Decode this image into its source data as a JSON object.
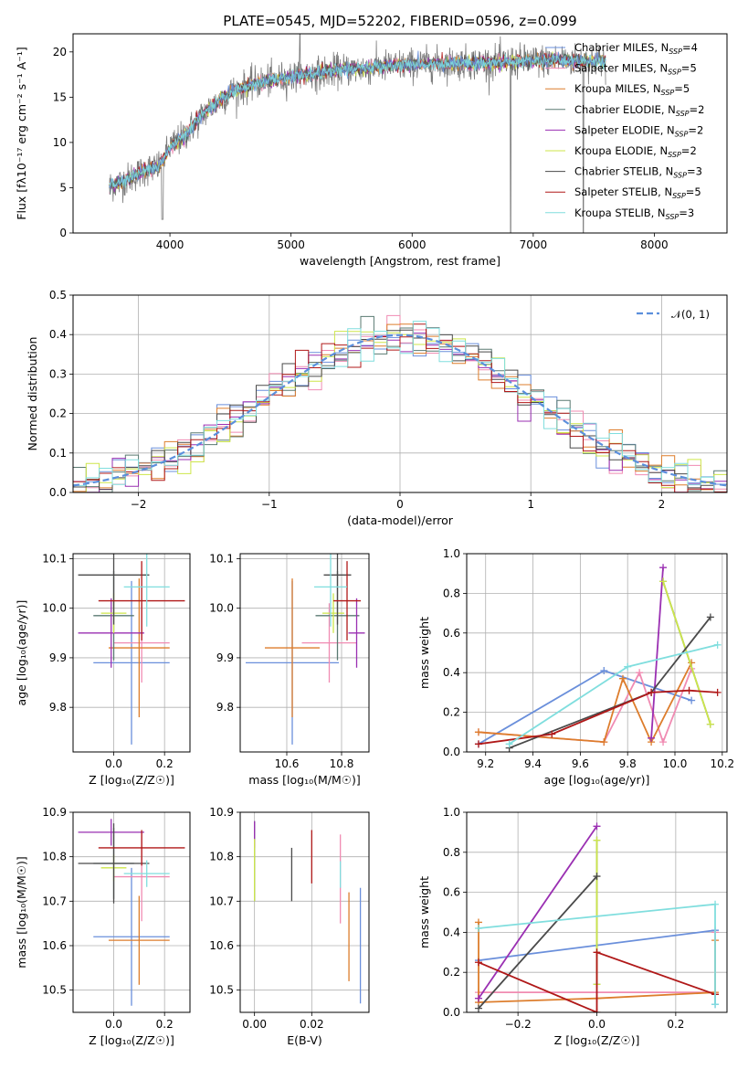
{
  "colors": {
    "Chabrier MILES": "#6a8fdb",
    "Salpeter MILES": "#f08bb2",
    "Kroupa MILES": "#dd7d2c",
    "Chabrier ELODIE": "#5a7a72",
    "Salpeter ELODIE": "#9a2fb2",
    "Kroupa ELODIE": "#cde64a",
    "Chabrier STELIB": "#4a4a4a",
    "Salpeter STELIB": "#b01818",
    "Kroupa STELIB": "#80dede",
    "normal": "#5b8fdc"
  },
  "chart_data": [
    {
      "id": "spectrum",
      "type": "line",
      "title": "PLATE=0545, MJD=52202, FIBERID=0596, z=0.099",
      "xlabel": "wavelength [Angstrom, rest frame]",
      "ylabel": "Flux [fλ10⁻¹⁷ erg cm⁻² s⁻¹ A⁻¹]",
      "xlim": [
        3200,
        8600
      ],
      "ylim": [
        0,
        22
      ],
      "xticks": [
        4000,
        5000,
        6000,
        7000,
        8000
      ],
      "yticks": [
        0,
        5,
        10,
        15,
        20
      ],
      "grid": false,
      "legend_position": "top-right",
      "continuum": {
        "x": [
          3500,
          3600,
          3700,
          3800,
          3900,
          3950,
          4000,
          4100,
          4200,
          4300,
          4400,
          4500,
          4600,
          4700,
          4800,
          4900,
          5000,
          5200,
          5400,
          5600,
          5800,
          6000,
          6200,
          6400,
          6600,
          6800,
          7000,
          7200,
          7400,
          7600
        ],
        "y": [
          5.2,
          5.6,
          6.3,
          7.0,
          7.3,
          8.2,
          9.5,
          10.5,
          12.0,
          13.5,
          14.5,
          15.5,
          16.0,
          16.5,
          16.8,
          17.0,
          17.2,
          17.6,
          18.0,
          18.2,
          18.4,
          18.6,
          18.7,
          18.8,
          18.8,
          18.9,
          19.0,
          19.1,
          19.0,
          19.0
        ]
      },
      "legend": [
        {
          "label": "Chabrier MILES, N",
          "nssp": "4"
        },
        {
          "label": "Salpeter MILES, N",
          "nssp": "5"
        },
        {
          "label": "Kroupa MILES, N",
          "nssp": "5"
        },
        {
          "label": "Chabrier ELODIE, N",
          "nssp": "2"
        },
        {
          "label": "Salpeter ELODIE, N",
          "nssp": "2"
        },
        {
          "label": "Kroupa ELODIE, N",
          "nssp": "2"
        },
        {
          "label": "Chabrier STELIB, N",
          "nssp": "3"
        },
        {
          "label": "Salpeter STELIB, N",
          "nssp": "5"
        },
        {
          "label": "Kroupa STELIB, N",
          "nssp": "3"
        }
      ],
      "legend_sub": "SSP",
      "legend_eq": "="
    },
    {
      "id": "residuals",
      "type": "step",
      "xlabel": "(data-model)/error",
      "ylabel": "Normed distribution",
      "xlim": [
        -2.5,
        2.5
      ],
      "ylim": [
        0,
        0.5
      ],
      "xticks": [
        -2,
        -1,
        0,
        1,
        2
      ],
      "yticks": [
        0.0,
        0.1,
        0.2,
        0.3,
        0.4,
        0.5
      ],
      "grid": true,
      "legend_position": "top-right",
      "normal_curve_label": "𝒩(0, 1)",
      "bin_width": 0.1
    },
    {
      "id": "age-vs-Z",
      "type": "errorbar",
      "xlabel": "Z [log₁₀(Z/Z☉)]",
      "ylabel": "age [log₁₀(age/yr)]",
      "xlim": [
        -0.16,
        0.3
      ],
      "ylim": [
        9.71,
        10.11
      ],
      "xticks": [
        0.0,
        0.2
      ],
      "yticks": [
        9.8,
        9.9,
        10.0,
        10.1
      ],
      "points": [
        {
          "model": "Chabrier MILES",
          "x": 0.07,
          "xerr": 0.15,
          "y": 9.89,
          "yerr": 0.165
        },
        {
          "model": "Salpeter MILES",
          "x": 0.11,
          "xerr": 0.11,
          "y": 9.93,
          "yerr": 0.08
        },
        {
          "model": "Kroupa MILES",
          "x": 0.1,
          "xerr": 0.12,
          "y": 9.92,
          "yerr": 0.14
        },
        {
          "model": "Chabrier ELODIE",
          "x": 0.0,
          "xerr": 0.08,
          "y": 9.985,
          "yerr": 0.09
        },
        {
          "model": "Salpeter ELODIE",
          "x": -0.01,
          "xerr": 0.13,
          "y": 9.95,
          "yerr": 0.07
        },
        {
          "model": "Kroupa ELODIE",
          "x": 0.0,
          "xerr": 0.05,
          "y": 9.99,
          "yerr": 0.04
        },
        {
          "model": "Chabrier STELIB",
          "x": 0.0,
          "xerr": 0.14,
          "y": 10.067,
          "yerr": 0.1
        },
        {
          "model": "Salpeter STELIB",
          "x": 0.11,
          "xerr": 0.17,
          "y": 10.015,
          "yerr": 0.08
        },
        {
          "model": "Kroupa STELIB",
          "x": 0.13,
          "xerr": 0.09,
          "y": 10.043,
          "yerr": 0.08
        }
      ]
    },
    {
      "id": "age-vs-mass",
      "type": "errorbar",
      "xlabel": "mass [log₁₀(M/M☉)]",
      "ylabel": "",
      "xlim": [
        10.43,
        10.9
      ],
      "ylim": [
        9.71,
        10.11
      ],
      "xticks": [
        10.6,
        10.8
      ],
      "yticks": [
        9.8,
        9.9,
        10.0,
        10.1
      ],
      "points": [
        {
          "model": "Chabrier MILES",
          "x": 10.62,
          "xerr": 0.17,
          "y": 9.89,
          "yerr": 0.165
        },
        {
          "model": "Salpeter MILES",
          "x": 10.755,
          "xerr": 0.1,
          "y": 9.93,
          "yerr": 0.08
        },
        {
          "model": "Kroupa MILES",
          "x": 10.62,
          "xerr": 0.1,
          "y": 9.92,
          "yerr": 0.14
        },
        {
          "model": "Chabrier ELODIE",
          "x": 10.785,
          "xerr": 0.08,
          "y": 9.985,
          "yerr": 0.09
        },
        {
          "model": "Salpeter ELODIE",
          "x": 10.855,
          "xerr": 0.03,
          "y": 9.95,
          "yerr": 0.07
        },
        {
          "model": "Kroupa ELODIE",
          "x": 10.77,
          "xerr": 0.04,
          "y": 9.99,
          "yerr": 0.04
        },
        {
          "model": "Chabrier STELIB",
          "x": 10.785,
          "xerr": 0.05,
          "y": 10.067,
          "yerr": 0.1
        },
        {
          "model": "Salpeter STELIB",
          "x": 10.82,
          "xerr": 0.05,
          "y": 10.015,
          "yerr": 0.08
        },
        {
          "model": "Kroupa STELIB",
          "x": 10.76,
          "xerr": 0.06,
          "y": 10.043,
          "yerr": 0.08
        }
      ]
    },
    {
      "id": "weight-vs-age",
      "type": "line",
      "xlabel": "age [log₁₀(age/yr)]",
      "ylabel": "mass weight",
      "xlim": [
        9.12,
        10.22
      ],
      "ylim": [
        0,
        1.0
      ],
      "xticks": [
        9.2,
        9.4,
        9.6,
        9.8,
        10.0,
        10.2
      ],
      "yticks": [
        0.0,
        0.2,
        0.4,
        0.6,
        0.8,
        1.0
      ],
      "grid": true,
      "series": [
        {
          "model": "Chabrier MILES",
          "x": [
            9.17,
            9.7,
            10.07
          ],
          "y": [
            0.04,
            0.41,
            0.26
          ]
        },
        {
          "model": "Salpeter MILES",
          "x": [
            9.17,
            9.7,
            9.85,
            9.95,
            10.07
          ],
          "y": [
            0.1,
            0.05,
            0.4,
            0.05,
            0.42
          ]
        },
        {
          "model": "Kroupa MILES",
          "x": [
            9.17,
            9.7,
            9.78,
            9.9,
            10.07
          ],
          "y": [
            0.1,
            0.05,
            0.37,
            0.05,
            0.45
          ]
        },
        {
          "model": "Chabrier ELODIE",
          "x": [
            9.95,
            10.15
          ],
          "y": [
            0.86,
            0.14
          ]
        },
        {
          "model": "Salpeter ELODIE",
          "x": [
            9.9,
            9.95
          ],
          "y": [
            0.07,
            0.93
          ]
        },
        {
          "model": "Kroupa ELODIE",
          "x": [
            9.95,
            10.15
          ],
          "y": [
            0.86,
            0.14
          ]
        },
        {
          "model": "Chabrier STELIB",
          "x": [
            9.3,
            9.9,
            10.15
          ],
          "y": [
            0.02,
            0.3,
            0.68
          ]
        },
        {
          "model": "Salpeter STELIB",
          "x": [
            9.17,
            9.48,
            9.9,
            10.06,
            10.18
          ],
          "y": [
            0.04,
            0.09,
            0.3,
            0.31,
            0.3
          ]
        },
        {
          "model": "Kroupa STELIB",
          "x": [
            9.3,
            9.8,
            10.18
          ],
          "y": [
            0.04,
            0.43,
            0.54
          ]
        }
      ]
    },
    {
      "id": "mass-vs-Z",
      "type": "errorbar",
      "xlabel": "Z [log₁₀(Z/Z☉)]",
      "ylabel": "mass [log₁₀(M/M☉)]",
      "xlim": [
        -0.16,
        0.3
      ],
      "ylim": [
        10.45,
        10.9
      ],
      "xticks": [
        0.0,
        0.2
      ],
      "yticks": [
        10.5,
        10.6,
        10.7,
        10.8,
        10.9
      ],
      "points": [
        {
          "model": "Chabrier MILES",
          "x": 0.07,
          "xerr": 0.15,
          "y": 10.62,
          "yerr": 0.155
        },
        {
          "model": "Salpeter MILES",
          "x": 0.11,
          "xerr": 0.11,
          "y": 10.755,
          "yerr": 0.1
        },
        {
          "model": "Kroupa MILES",
          "x": 0.1,
          "xerr": 0.12,
          "y": 10.612,
          "yerr": 0.1
        },
        {
          "model": "Chabrier ELODIE",
          "x": 0.0,
          "xerr": 0.08,
          "y": 10.785,
          "yerr": 0.08
        },
        {
          "model": "Salpeter ELODIE",
          "x": -0.01,
          "xerr": 0.13,
          "y": 10.855,
          "yerr": 0.03
        },
        {
          "model": "Kroupa ELODIE",
          "x": 0.0,
          "xerr": 0.05,
          "y": 10.775,
          "yerr": 0.03
        },
        {
          "model": "Chabrier STELIB",
          "x": 0.0,
          "xerr": 0.14,
          "y": 10.785,
          "yerr": 0.09
        },
        {
          "model": "Salpeter STELIB",
          "x": 0.11,
          "xerr": 0.17,
          "y": 10.82,
          "yerr": 0.04
        },
        {
          "model": "Kroupa STELIB",
          "x": 0.13,
          "xerr": 0.09,
          "y": 10.762,
          "yerr": 0.03
        }
      ]
    },
    {
      "id": "mass-vs-ebv",
      "type": "errorbar",
      "xlabel": "E(B-V)",
      "ylabel": "",
      "xlim": [
        -0.005,
        0.04
      ],
      "ylim": [
        10.45,
        10.9
      ],
      "xticks": [
        0.0,
        0.02
      ],
      "yticks": [
        10.5,
        10.6,
        10.7,
        10.8,
        10.9
      ],
      "points": [
        {
          "model": "Chabrier MILES",
          "x": 0.037,
          "y": 10.6,
          "yerr": 0.13
        },
        {
          "model": "Salpeter MILES",
          "x": 0.03,
          "y": 10.75,
          "yerr": 0.1
        },
        {
          "model": "Kroupa MILES",
          "x": 0.033,
          "y": 10.62,
          "yerr": 0.1
        },
        {
          "model": "Chabrier ELODIE",
          "x": 0.0,
          "y": 10.79,
          "yerr": 0.09
        },
        {
          "model": "Salpeter ELODIE",
          "x": 0.0,
          "y": 10.85,
          "yerr": 0.03
        },
        {
          "model": "Kroupa ELODIE",
          "x": 0.0,
          "y": 10.77,
          "yerr": 0.07
        },
        {
          "model": "Chabrier STELIB",
          "x": 0.013,
          "y": 10.76,
          "yerr": 0.06
        },
        {
          "model": "Salpeter STELIB",
          "x": 0.02,
          "y": 10.8,
          "yerr": 0.06
        },
        {
          "model": "Kroupa STELIB",
          "x": 0.03,
          "y": 10.76,
          "yerr": 0.03
        }
      ]
    },
    {
      "id": "weight-vs-Z",
      "type": "line",
      "xlabel": "Z [log₁₀(Z/Z☉)]",
      "ylabel": "mass weight",
      "xlim": [
        -0.33,
        0.33
      ],
      "ylim": [
        0,
        1.0
      ],
      "xticks": [
        -0.2,
        0.0,
        0.2
      ],
      "yticks": [
        0.0,
        0.2,
        0.4,
        0.6,
        0.8,
        1.0
      ],
      "grid": true,
      "series": [
        {
          "model": "Chabrier MILES",
          "x": [
            -0.3,
            0.3,
            0.3
          ],
          "y": [
            0.26,
            0.41,
            0.04
          ]
        },
        {
          "model": "Salpeter MILES",
          "x": [
            -0.3,
            0.3,
            0.3
          ],
          "y": [
            0.1,
            0.1,
            0.4
          ]
        },
        {
          "model": "Kroupa MILES",
          "x": [
            -0.3,
            -0.3,
            0.0,
            0.3,
            0.3
          ],
          "y": [
            0.45,
            0.05,
            0.07,
            0.1,
            0.36
          ]
        },
        {
          "model": "Chabrier ELODIE",
          "x": [
            0.0,
            0.0
          ],
          "y": [
            0.86,
            0.14
          ]
        },
        {
          "model": "Salpeter ELODIE",
          "x": [
            -0.3,
            0.0
          ],
          "y": [
            0.07,
            0.93
          ]
        },
        {
          "model": "Kroupa ELODIE",
          "x": [
            0.0,
            0.0
          ],
          "y": [
            0.86,
            0.14
          ]
        },
        {
          "model": "Chabrier STELIB",
          "x": [
            -0.3,
            0.0
          ],
          "y": [
            0.02,
            0.68
          ]
        },
        {
          "model": "Salpeter STELIB",
          "x": [
            -0.3,
            0.0,
            0.0,
            0.3
          ],
          "y": [
            0.25,
            0.0,
            0.3,
            0.09
          ]
        },
        {
          "model": "Kroupa STELIB",
          "x": [
            -0.3,
            0.3,
            0.3
          ],
          "y": [
            0.42,
            0.54,
            0.04
          ]
        }
      ]
    }
  ]
}
